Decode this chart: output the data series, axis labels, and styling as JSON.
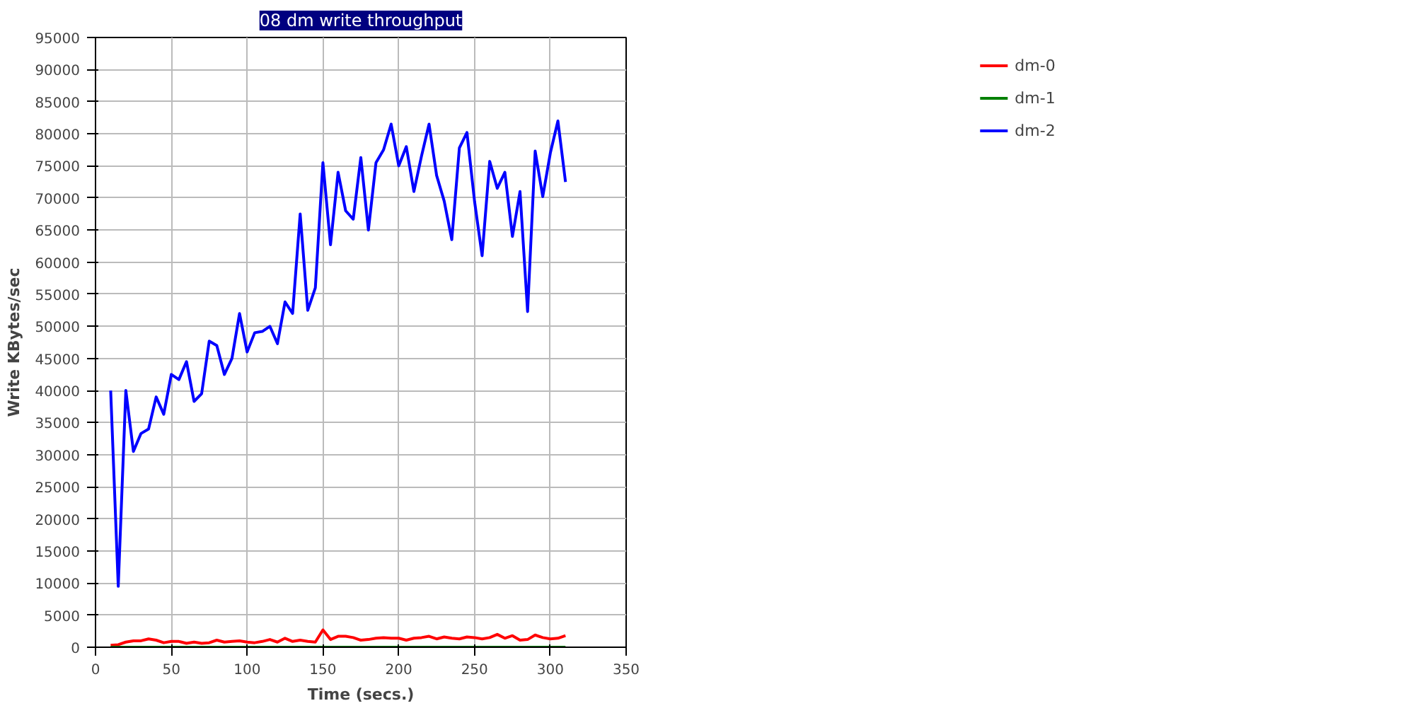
{
  "chart_data": {
    "type": "line",
    "title": "08 dm write throughput",
    "xlabel": "Time (secs.)",
    "ylabel": "Write KBytes/sec",
    "x": [
      10,
      15,
      20,
      25,
      30,
      35,
      40,
      45,
      50,
      55,
      60,
      65,
      70,
      75,
      80,
      85,
      90,
      95,
      100,
      105,
      110,
      115,
      120,
      125,
      130,
      135,
      140,
      145,
      150,
      155,
      160,
      165,
      170,
      175,
      180,
      185,
      190,
      195,
      200,
      205,
      210,
      215,
      220,
      225,
      230,
      235,
      240,
      245,
      250,
      255,
      260,
      265,
      270,
      275,
      280,
      285,
      290,
      295,
      300,
      305,
      310
    ],
    "series": [
      {
        "name": "dm-0",
        "color": "#ff0000",
        "values": [
          300,
          400,
          800,
          1000,
          1000,
          1300,
          1100,
          700,
          900,
          900,
          600,
          800,
          600,
          700,
          1100,
          800,
          900,
          1000,
          800,
          700,
          900,
          1200,
          800,
          1400,
          900,
          1100,
          900,
          800,
          2700,
          1200,
          1700,
          1700,
          1500,
          1100,
          1200,
          1400,
          1500,
          1400,
          1400,
          1100,
          1400,
          1500,
          1700,
          1300,
          1600,
          1400,
          1300,
          1600,
          1500,
          1300,
          1500,
          2000,
          1400,
          1800,
          1100,
          1200,
          1900,
          1500,
          1300,
          1400,
          1800
        ]
      },
      {
        "name": "dm-1",
        "color": "#008000",
        "values": [
          0,
          0,
          0,
          0,
          0,
          0,
          0,
          0,
          0,
          0,
          0,
          0,
          0,
          0,
          0,
          0,
          0,
          0,
          0,
          0,
          0,
          0,
          0,
          0,
          0,
          0,
          0,
          0,
          0,
          0,
          0,
          0,
          0,
          0,
          0,
          0,
          0,
          0,
          0,
          0,
          0,
          0,
          0,
          0,
          0,
          0,
          0,
          0,
          0,
          0,
          0,
          0,
          0,
          0,
          0,
          0,
          0,
          0,
          0,
          0,
          0
        ]
      },
      {
        "name": "dm-2",
        "color": "#0000ff",
        "values": [
          40000,
          9500,
          40000,
          30500,
          33300,
          34000,
          39000,
          36300,
          42500,
          41700,
          44500,
          38300,
          39500,
          47700,
          47000,
          42500,
          45000,
          52000,
          46000,
          49000,
          49200,
          50000,
          47300,
          53800,
          52000,
          67500,
          52500,
          56000,
          75500,
          62700,
          74000,
          68000,
          66700,
          76300,
          65000,
          75500,
          77500,
          81500,
          75000,
          78000,
          71000,
          76500,
          81500,
          73500,
          69500,
          63500,
          77800,
          80200,
          69500,
          61000,
          75700,
          71500,
          74000,
          64000,
          71000,
          52300,
          77300,
          70200,
          77000,
          82000,
          72500
        ]
      }
    ],
    "xlim": [
      0,
      350
    ],
    "xticks": [
      0,
      50,
      100,
      150,
      200,
      250,
      300,
      350
    ],
    "ylim": [
      0,
      95000
    ],
    "yticks": [
      0,
      5000,
      10000,
      15000,
      20000,
      25000,
      30000,
      35000,
      40000,
      45000,
      50000,
      55000,
      60000,
      65000,
      70000,
      75000,
      80000,
      85000,
      90000,
      95000
    ],
    "grid": true,
    "legend": "right"
  }
}
